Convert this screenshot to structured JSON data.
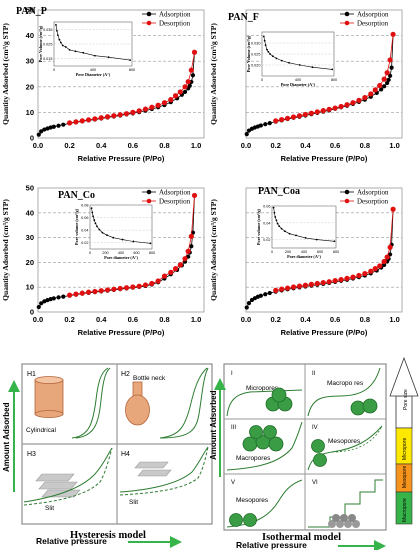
{
  "chart_data": [
    {
      "panel_id": "pan_p",
      "type": "line",
      "title": "PAN_P",
      "xlabel": "Relative Pressure (P/Po)",
      "ylabel": "Quantity Adsorbed (cm³/g STP)",
      "xlim": [
        0,
        1.05
      ],
      "ylim": [
        0,
        50
      ],
      "xticks": [
        "0.0",
        "0.2",
        "0.4",
        "0.6",
        "0.8",
        "1.0"
      ],
      "yticks": [
        "0",
        "10",
        "20",
        "30",
        "40",
        "50"
      ],
      "grid": true,
      "legend_position": "top-right",
      "series": [
        {
          "name": "Adsorption",
          "color": "#000000",
          "x": [
            0.005,
            0.02,
            0.04,
            0.06,
            0.08,
            0.1,
            0.13,
            0.16,
            0.2,
            0.24,
            0.28,
            0.32,
            0.36,
            0.4,
            0.44,
            0.48,
            0.52,
            0.56,
            0.6,
            0.64,
            0.68,
            0.72,
            0.76,
            0.8,
            0.84,
            0.88,
            0.91,
            0.93,
            0.95,
            0.96,
            0.97,
            0.98,
            0.99
          ],
          "y": [
            1.3,
            2.6,
            3.3,
            3.7,
            4.1,
            4.4,
            4.8,
            5.2,
            5.7,
            6.1,
            6.5,
            6.9,
            7.2,
            7.6,
            8.0,
            8.4,
            8.8,
            9.2,
            9.6,
            10.1,
            10.7,
            11.3,
            12.0,
            12.9,
            14.0,
            15.5,
            16.9,
            18.0,
            19.4,
            20.4,
            21.9,
            24.5,
            33.5
          ]
        },
        {
          "name": "Desorption",
          "color": "#e01010",
          "x": [
            0.99,
            0.97,
            0.95,
            0.93,
            0.9,
            0.87,
            0.84,
            0.8,
            0.76,
            0.72,
            0.68,
            0.64,
            0.6,
            0.56,
            0.52,
            0.48,
            0.44,
            0.4,
            0.36,
            0.32,
            0.28,
            0.24,
            0.2
          ],
          "y": [
            33.5,
            26.5,
            22.0,
            20.0,
            18.0,
            16.5,
            15.0,
            13.8,
            12.8,
            12.0,
            11.3,
            10.6,
            10.0,
            9.5,
            9.1,
            8.7,
            8.3,
            7.9,
            7.5,
            7.1,
            6.7,
            6.3,
            5.9
          ]
        }
      ],
      "inset": {
        "xlabel": "Pore Diameter (A°)",
        "ylabel": "Pore Volume (cm³/g)",
        "xlim": [
          0,
          800
        ],
        "ylim": [
          0.01,
          0.04
        ],
        "xticks": [
          "0",
          "400",
          "800"
        ],
        "yticks": [
          "0.015",
          "0.025",
          "0.035"
        ],
        "x": [
          20,
          30,
          40,
          55,
          70,
          90,
          120,
          160,
          220,
          300,
          420,
          560,
          780
        ],
        "y": [
          0.038,
          0.034,
          0.031,
          0.028,
          0.026,
          0.024,
          0.023,
          0.021,
          0.02,
          0.019,
          0.017,
          0.016,
          0.014
        ]
      }
    },
    {
      "panel_id": "pan_f",
      "type": "line",
      "title": "PAN_F",
      "xlabel": "Relative Pressure (P/Po)",
      "ylabel": "Quantity Adsorbed (cm³/g STP)",
      "xlim": [
        0,
        1.05
      ],
      "ylim": [
        0,
        50
      ],
      "xticks": [
        "0.0",
        "0.2",
        "0.4",
        "0.6",
        "0.8",
        "1.0"
      ],
      "grid": true,
      "legend_position": "top-right",
      "series": [
        {
          "name": "Adsorption",
          "color": "#000000",
          "x": [
            0.005,
            0.02,
            0.04,
            0.06,
            0.08,
            0.1,
            0.13,
            0.16,
            0.2,
            0.24,
            0.28,
            0.32,
            0.36,
            0.4,
            0.44,
            0.48,
            0.52,
            0.56,
            0.6,
            0.64,
            0.68,
            0.72,
            0.76,
            0.8,
            0.84,
            0.88,
            0.91,
            0.93,
            0.95,
            0.96,
            0.97,
            0.98,
            0.99
          ],
          "y": [
            1.5,
            2.9,
            3.6,
            4.1,
            4.5,
            4.9,
            5.4,
            5.8,
            6.4,
            6.9,
            7.4,
            7.9,
            8.3,
            8.8,
            9.3,
            9.8,
            10.3,
            10.8,
            11.4,
            12.0,
            12.6,
            13.3,
            14.1,
            15.0,
            16.1,
            17.6,
            19.0,
            20.2,
            21.5,
            22.7,
            24.3,
            27.5,
            40.5
          ]
        },
        {
          "name": "Desorption",
          "color": "#e01010",
          "x": [
            0.99,
            0.97,
            0.95,
            0.93,
            0.9,
            0.87,
            0.84,
            0.8,
            0.76,
            0.72,
            0.68,
            0.64,
            0.6,
            0.56,
            0.52,
            0.48,
            0.44,
            0.4,
            0.36,
            0.32,
            0.28,
            0.24,
            0.2
          ],
          "y": [
            40.5,
            30.5,
            25.5,
            23.0,
            20.5,
            18.8,
            17.2,
            15.8,
            14.7,
            13.8,
            13.0,
            12.3,
            11.7,
            11.2,
            10.7,
            10.2,
            9.7,
            9.2,
            8.7,
            8.2,
            7.7,
            7.2,
            6.7
          ]
        }
      ],
      "inset": {
        "xlabel": "Pore Diameter (A°)",
        "ylabel": "Pore Volume (cm³/g)",
        "xlim": [
          0,
          800
        ],
        "ylim": [
          0.015,
          0.035
        ],
        "xticks": [
          "0",
          "400",
          "800"
        ],
        "yticks": [
          "0.020",
          "0.025",
          "0.030"
        ],
        "x": [
          20,
          30,
          40,
          55,
          70,
          90,
          120,
          160,
          220,
          300,
          420,
          560,
          780
        ],
        "y": [
          0.033,
          0.031,
          0.029,
          0.027,
          0.026,
          0.025,
          0.024,
          0.023,
          0.022,
          0.021,
          0.02,
          0.019,
          0.018
        ]
      }
    },
    {
      "panel_id": "pan_co",
      "type": "line",
      "title": "PAN_Co",
      "xlabel": "Relative Pressure (P/Po)",
      "ylabel": "Quantity Adsorbed (cm³/g STP)",
      "xlim": [
        0,
        1.05
      ],
      "ylim": [
        0,
        50
      ],
      "xticks": [
        "0.0",
        "0.2",
        "0.4",
        "0.6",
        "0.8",
        "1.0"
      ],
      "yticks": [
        "0",
        "10",
        "20",
        "30",
        "40",
        "50"
      ],
      "grid": true,
      "legend_position": "top-right",
      "series": [
        {
          "name": "Adsorption",
          "color": "#000000",
          "x": [
            0.005,
            0.02,
            0.04,
            0.06,
            0.08,
            0.1,
            0.13,
            0.16,
            0.2,
            0.24,
            0.28,
            0.32,
            0.36,
            0.4,
            0.44,
            0.48,
            0.52,
            0.56,
            0.6,
            0.64,
            0.68,
            0.72,
            0.76,
            0.8,
            0.84,
            0.88,
            0.91,
            0.93,
            0.95,
            0.96,
            0.97,
            0.98,
            0.99
          ],
          "y": [
            2.0,
            3.5,
            4.3,
            4.8,
            5.2,
            5.5,
            5.9,
            6.2,
            6.6,
            7.0,
            7.4,
            7.7,
            8.0,
            8.3,
            8.6,
            8.9,
            9.2,
            9.5,
            9.8,
            10.1,
            10.5,
            11.1,
            12.0,
            13.5,
            15.2,
            17.0,
            18.8,
            20.3,
            22.3,
            24.0,
            26.5,
            32.0,
            47.0
          ]
        },
        {
          "name": "Desorption",
          "color": "#e01010",
          "x": [
            0.99,
            0.97,
            0.95,
            0.93,
            0.9,
            0.87,
            0.84,
            0.8,
            0.76,
            0.72,
            0.68,
            0.64,
            0.6,
            0.56,
            0.52,
            0.48,
            0.44,
            0.4,
            0.36,
            0.32,
            0.28,
            0.24,
            0.2
          ],
          "y": [
            47.0,
            30.5,
            24.5,
            21.5,
            19.0,
            17.5,
            16.0,
            14.5,
            12.5,
            11.5,
            10.9,
            10.4,
            10.1,
            9.8,
            9.5,
            9.2,
            8.9,
            8.6,
            8.3,
            8.0,
            7.6,
            7.2,
            6.8
          ]
        }
      ],
      "inset": {
        "xlabel": "Pore diameter (A°)",
        "ylabel": "Pore volume (cm³/g)",
        "xlim": [
          0,
          800
        ],
        "ylim": [
          0.01,
          0.08
        ],
        "xticks": [
          "0",
          "200",
          "400",
          "600",
          "800"
        ],
        "yticks": [
          "0.02",
          "0.04",
          "0.06",
          "0.08"
        ],
        "x": [
          20,
          30,
          40,
          55,
          70,
          90,
          120,
          160,
          220,
          300,
          420,
          560,
          780
        ],
        "y": [
          0.075,
          0.068,
          0.062,
          0.056,
          0.051,
          0.046,
          0.041,
          0.036,
          0.032,
          0.028,
          0.025,
          0.022,
          0.019
        ]
      }
    },
    {
      "panel_id": "pan_coa",
      "type": "line",
      "title": "PAN_Coa",
      "xlabel": "Relative Pressure (P/Po)",
      "ylabel": "Quantity Adsorbed (cm³/g STP)",
      "xlim": [
        0,
        1.05
      ],
      "ylim": [
        0,
        70
      ],
      "xticks": [
        "0.0",
        "0.2",
        "0.4",
        "0.6",
        "0.8",
        "1.0"
      ],
      "grid": true,
      "legend_position": "top-right",
      "series": [
        {
          "name": "Adsorption",
          "color": "#000000",
          "x": [
            0.005,
            0.02,
            0.04,
            0.06,
            0.08,
            0.1,
            0.13,
            0.16,
            0.2,
            0.24,
            0.28,
            0.32,
            0.36,
            0.4,
            0.44,
            0.48,
            0.52,
            0.56,
            0.6,
            0.64,
            0.68,
            0.72,
            0.76,
            0.8,
            0.84,
            0.88,
            0.91,
            0.93,
            0.95,
            0.96,
            0.97,
            0.98,
            0.99
          ],
          "y": [
            2.5,
            5.0,
            6.8,
            7.8,
            8.6,
            9.2,
            10.0,
            10.7,
            11.5,
            12.2,
            12.8,
            13.4,
            13.9,
            14.4,
            14.9,
            15.4,
            15.9,
            16.4,
            17.0,
            17.6,
            18.2,
            18.9,
            19.7,
            20.6,
            21.8,
            23.4,
            25.1,
            26.6,
            28.5,
            30.0,
            32.5,
            38.0,
            58.0
          ]
        },
        {
          "name": "Desorption",
          "color": "#e01010",
          "x": [
            0.99,
            0.97,
            0.95,
            0.93,
            0.9,
            0.87,
            0.84,
            0.8,
            0.76,
            0.72,
            0.68,
            0.64,
            0.6,
            0.56,
            0.52,
            0.48,
            0.44,
            0.4,
            0.36,
            0.32,
            0.28,
            0.24,
            0.2
          ],
          "y": [
            58.0,
            36.5,
            31.0,
            28.5,
            26.0,
            24.5,
            23.0,
            21.7,
            20.6,
            19.7,
            19.0,
            18.3,
            17.7,
            17.1,
            16.6,
            16.1,
            15.6,
            15.1,
            14.6,
            14.1,
            13.5,
            12.9,
            12.2
          ]
        }
      ],
      "inset": {
        "xlabel": "Pore diameter (A°)",
        "ylabel": "Pore volume (cm³/g)",
        "xlim": [
          0,
          800
        ],
        "ylim": [
          0.01,
          0.06
        ],
        "xticks": [
          "0",
          "200",
          "400",
          "600",
          "800"
        ],
        "yticks": [
          "0.02",
          "0.04",
          "0.06"
        ],
        "x": [
          20,
          30,
          40,
          55,
          70,
          90,
          120,
          160,
          220,
          300,
          420,
          560,
          780
        ],
        "y": [
          0.058,
          0.052,
          0.047,
          0.043,
          0.039,
          0.036,
          0.033,
          0.03,
          0.027,
          0.025,
          0.022,
          0.02,
          0.018
        ]
      }
    }
  ],
  "hysteresis": {
    "title": "Hysteresis model",
    "ylabel": "Amount Adsorbed",
    "xlabel": "Relative pressure",
    "cells": [
      {
        "id": "H1",
        "caption": "Cylindrical"
      },
      {
        "id": "H2",
        "caption": "Bottle neck"
      },
      {
        "id": "H3",
        "caption": "Slit"
      },
      {
        "id": "H4",
        "caption": "Slit"
      }
    ]
  },
  "isotherm": {
    "title": "Isothermal model",
    "ylabel": "Amount Adsorbed",
    "xlabel": "Relative pressure",
    "cells": [
      {
        "id": "I",
        "caption": "Micropores"
      },
      {
        "id": "II",
        "caption": "Macropo res"
      },
      {
        "id": "III",
        "caption": "Macropores"
      },
      {
        "id": "IV",
        "caption": "Mesopores"
      },
      {
        "id": "V",
        "caption": "Mesopores"
      },
      {
        "id": "VI",
        "caption": ""
      }
    ]
  },
  "pore_scale": {
    "arrow_label": "Pore size",
    "segments": [
      {
        "label": "Micropore",
        "color": "#ffe800"
      },
      {
        "label": "Mesopore",
        "color": "#f7941d"
      },
      {
        "label": "Macropore",
        "color": "#36b44a"
      }
    ]
  }
}
